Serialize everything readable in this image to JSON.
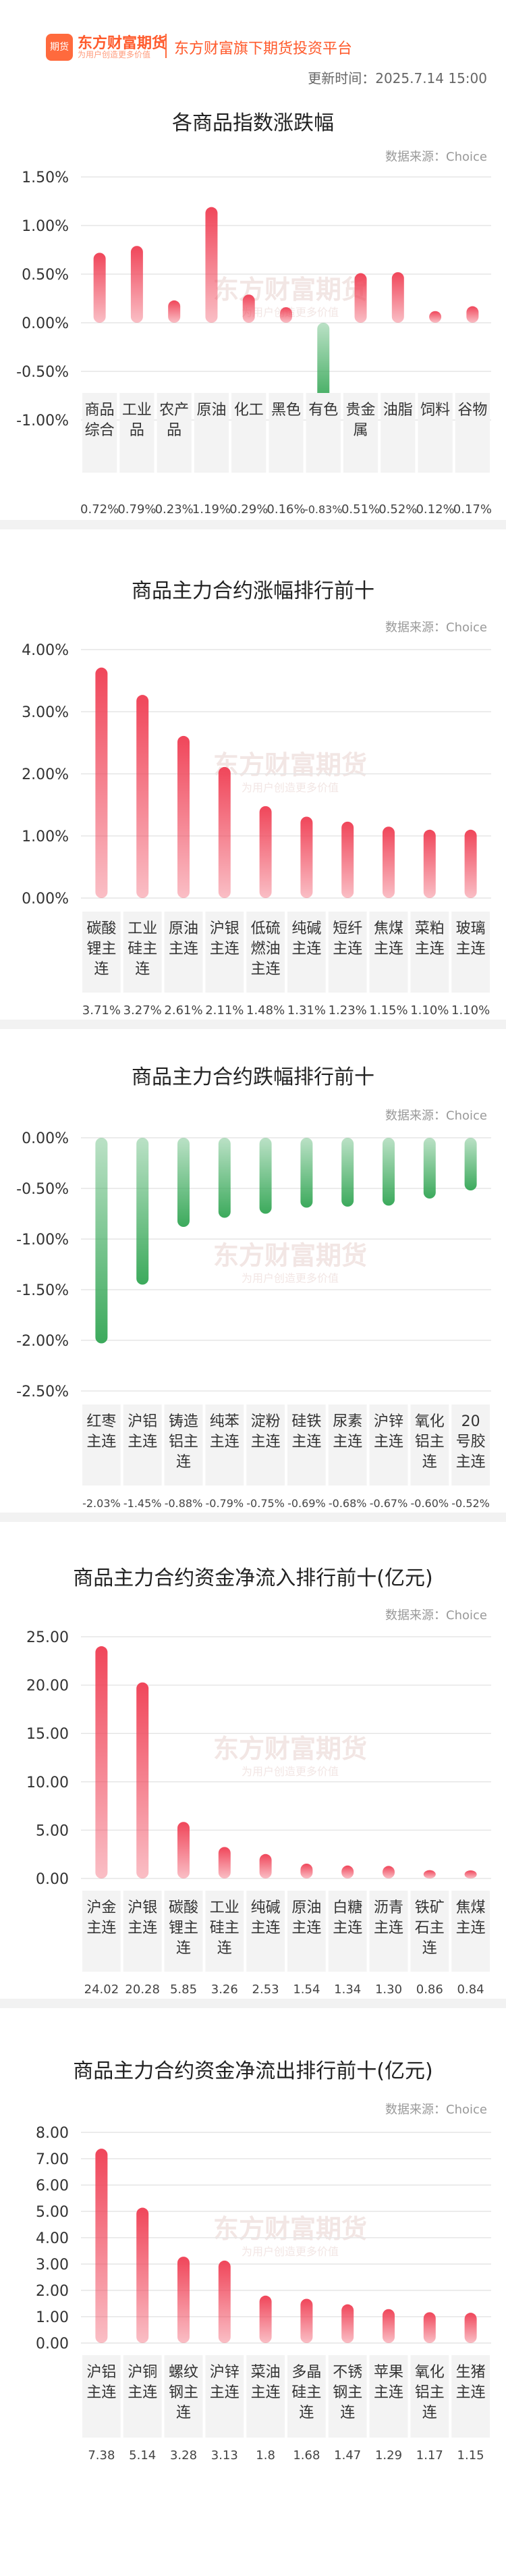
{
  "header": {
    "logo_badge": "期货",
    "logo_text": "东方财富期货",
    "logo_sub": "为用户创造更多价值",
    "platform": "东方财富旗下期货投资平台",
    "update_time": "更新时间：2025.7.14 15:00"
  },
  "watermark": {
    "main": "东方财富期货",
    "sub": "为用户创造更多价值"
  },
  "colors": {
    "up": "#f0465a",
    "down": "#3caa5c",
    "grid": "#e6e6e6"
  },
  "chart_data": [
    {
      "type": "bar",
      "title": "各商品指数涨跌幅",
      "source": "数据来源：Choice",
      "categories": [
        "商品综合",
        "工业品",
        "农产品",
        "原油",
        "化工",
        "黑色",
        "有色",
        "贵金属",
        "油脂",
        "饲料",
        "谷物"
      ],
      "values": [
        0.72,
        0.79,
        0.23,
        1.19,
        0.29,
        0.16,
        -0.83,
        0.51,
        0.52,
        0.12,
        0.17
      ],
      "value_labels": [
        "0.72%",
        "0.79%",
        "0.23%",
        "1.19%",
        "0.29%",
        "0.16%",
        "-0.83%",
        "0.51%",
        "0.52%",
        "0.12%",
        "0.17%"
      ],
      "ylim": [
        -1,
        1.5
      ],
      "yticks": [
        1.5,
        1.0,
        0.5,
        0,
        -0.5,
        -1.0
      ],
      "ytick_labels": [
        "1.50%",
        "1.00%",
        "0.50%",
        "0.00%",
        "-0.50%",
        "-1.00%"
      ]
    },
    {
      "type": "bar",
      "title": "商品主力合约涨幅排行前十",
      "source": "数据来源：Choice",
      "categories": [
        "碳酸锂主连",
        "工业硅主连",
        "原油主连",
        "沪银主连",
        "低硫燃油主连",
        "纯碱主连",
        "短纤主连",
        "焦煤主连",
        "菜粕主连",
        "玻璃主连"
      ],
      "values": [
        3.71,
        3.27,
        2.61,
        2.11,
        1.48,
        1.31,
        1.23,
        1.15,
        1.1,
        1.1
      ],
      "value_labels": [
        "3.71%",
        "3.27%",
        "2.61%",
        "2.11%",
        "1.48%",
        "1.31%",
        "1.23%",
        "1.15%",
        "1.10%",
        "1.10%"
      ],
      "ylim": [
        0,
        4
      ],
      "yticks": [
        4,
        3,
        2,
        1,
        0
      ],
      "ytick_labels": [
        "4.00%",
        "3.00%",
        "2.00%",
        "1.00%",
        "0.00%"
      ]
    },
    {
      "type": "bar",
      "title": "商品主力合约跌幅排行前十",
      "source": "数据来源：Choice",
      "categories": [
        "红枣主连",
        "沪铝主连",
        "铸造铝主连",
        "纯苯主连",
        "淀粉主连",
        "硅铁主连",
        "尿素主连",
        "沪锌主连",
        "氧化铝主连",
        "20号胶主连"
      ],
      "values": [
        -2.03,
        -1.45,
        -0.88,
        -0.79,
        -0.75,
        -0.69,
        -0.68,
        -0.67,
        -0.6,
        -0.52
      ],
      "value_labels": [
        "-2.03%",
        "-1.45%",
        "-0.88%",
        "-0.79%",
        "-0.75%",
        "-0.69%",
        "-0.68%",
        "-0.67%",
        "-0.60%",
        "-0.52%"
      ],
      "ylim": [
        -2.5,
        0
      ],
      "yticks": [
        0,
        -0.5,
        -1.0,
        -1.5,
        -2.0,
        -2.5
      ],
      "ytick_labels": [
        "0.00%",
        "-0.50%",
        "-1.00%",
        "-1.50%",
        "-2.00%",
        "-2.50%"
      ]
    },
    {
      "type": "bar",
      "title": "商品主力合约资金净流入排行前十(亿元)",
      "source": "数据来源：Choice",
      "categories": [
        "沪金主连",
        "沪银主连",
        "碳酸锂主连",
        "工业硅主连",
        "纯碱主连",
        "原油主连",
        "白糖主连",
        "沥青主连",
        "铁矿石主连",
        "焦煤主连"
      ],
      "values": [
        24.02,
        20.28,
        5.85,
        3.26,
        2.53,
        1.54,
        1.34,
        1.3,
        0.86,
        0.84
      ],
      "value_labels": [
        "24.02",
        "20.28",
        "5.85",
        "3.26",
        "2.53",
        "1.54",
        "1.34",
        "1.30",
        "0.86",
        "0.84"
      ],
      "ylim": [
        0,
        25
      ],
      "yticks": [
        25,
        20,
        15,
        10,
        5,
        0
      ],
      "ytick_labels": [
        "25.00",
        "20.00",
        "15.00",
        "10.00",
        "5.00",
        "0.00"
      ]
    },
    {
      "type": "bar",
      "title": "商品主力合约资金净流出排行前十(亿元)",
      "source": "数据来源：Choice",
      "categories": [
        "沪铝主连",
        "沪铜主连",
        "螺纹钢主连",
        "沪锌主连",
        "菜油主连",
        "多晶硅主连",
        "不锈钢主连",
        "苹果主连",
        "氧化铝主连",
        "生猪主连"
      ],
      "values": [
        7.38,
        5.14,
        3.28,
        3.13,
        1.8,
        1.68,
        1.47,
        1.29,
        1.17,
        1.15
      ],
      "value_labels": [
        "7.38",
        "5.14",
        "3.28",
        "3.13",
        "1.8",
        "1.68",
        "1.47",
        "1.29",
        "1.17",
        "1.15"
      ],
      "ylim": [
        0,
        8
      ],
      "yticks": [
        8,
        7,
        6,
        5,
        4,
        3,
        2,
        1,
        0
      ],
      "ytick_labels": [
        "8.00",
        "7.00",
        "6.00",
        "5.00",
        "4.00",
        "3.00",
        "2.00",
        "1.00",
        "0.00"
      ]
    }
  ]
}
